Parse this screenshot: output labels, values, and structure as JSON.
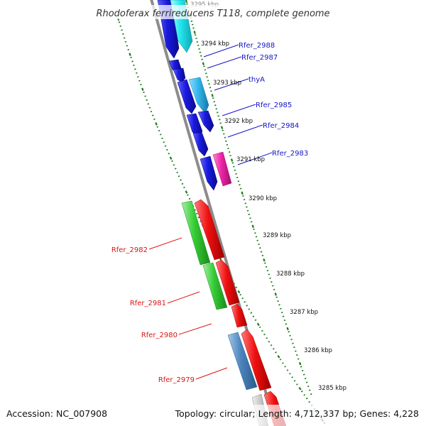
{
  "title": "Rhodoferax ferrireducens T118, complete genome",
  "footer": {
    "accession": "Accession: NC_007908",
    "summary": "Topology: circular; Length: 4,712,337 bp; Genes: 4,228"
  },
  "colors": {
    "backbone": "#8c8c8c",
    "tick_marks": "#1a7a1a",
    "reverse_label": "#1414c8",
    "forward_label": "#dc1414",
    "blue_gene": "#1a1ae0",
    "cyan_gene": "#22e6ee",
    "sky_gene": "#34b8ee",
    "magenta_gene": "#ee24a8",
    "red_gene": "#f01010",
    "green_gene": "#34cc34",
    "steel_gene": "#4a84bc",
    "grey_gene": "#c8c8c8"
  },
  "scale_labels": [
    "3295 kbp",
    "3294 kbp",
    "3293 kbp",
    "3292 kbp",
    "3291 kbp",
    "3290 kbp",
    "3289 kbp",
    "3288 kbp",
    "3287 kbp",
    "3286 kbp",
    "3285 kbp"
  ],
  "gene_labels": [
    {
      "text": "Rfer_2988",
      "side": "reverse"
    },
    {
      "text": "Rfer_2987",
      "side": "reverse"
    },
    {
      "text": "thyA",
      "side": "reverse"
    },
    {
      "text": "Rfer_2985",
      "side": "reverse"
    },
    {
      "text": "Rfer_2984",
      "side": "reverse"
    },
    {
      "text": "Rfer_2983",
      "side": "reverse"
    },
    {
      "text": "Rfer_2982",
      "side": "forward"
    },
    {
      "text": "Rfer_2981",
      "side": "forward"
    },
    {
      "text": "Rfer_2980",
      "side": "forward"
    },
    {
      "text": "Rfer_2979",
      "side": "forward"
    }
  ]
}
